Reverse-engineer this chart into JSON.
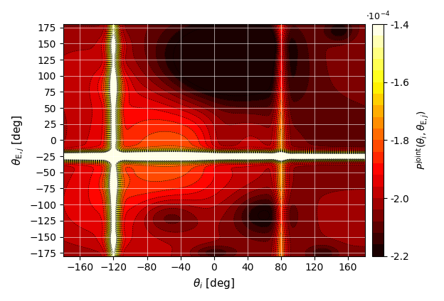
{
  "xlabel": "$\\theta_i$ [deg]",
  "ylabel": "$\\theta_{\\mathrm{E},j}$ [deg]",
  "colorbar_label": "$P^{\\mathrm{joint}}(\\theta_i, \\theta_{\\mathrm{E},j})$",
  "colorbar_multiplier": "$\\cdot 10^{-4}$",
  "xlim": [
    -180,
    180
  ],
  "ylim": [
    -180,
    180
  ],
  "xticks": [
    -160,
    -120,
    -80,
    -40,
    0,
    40,
    80,
    120,
    160
  ],
  "yticks": [
    -175,
    -150,
    -125,
    -100,
    -75,
    -50,
    -25,
    0,
    25,
    50,
    75,
    100,
    125,
    150,
    175
  ],
  "vmin": -0.00022,
  "vmax": -0.00014,
  "colorbar_ticks": [
    -2.2,
    -2.0,
    -1.8,
    -1.6,
    -1.4
  ],
  "cmap": "hot",
  "grid_color": "white",
  "grid_alpha": 0.6,
  "n_contour_levels": 20,
  "figsize": [
    6.24,
    4.24
  ],
  "dpi": 100
}
